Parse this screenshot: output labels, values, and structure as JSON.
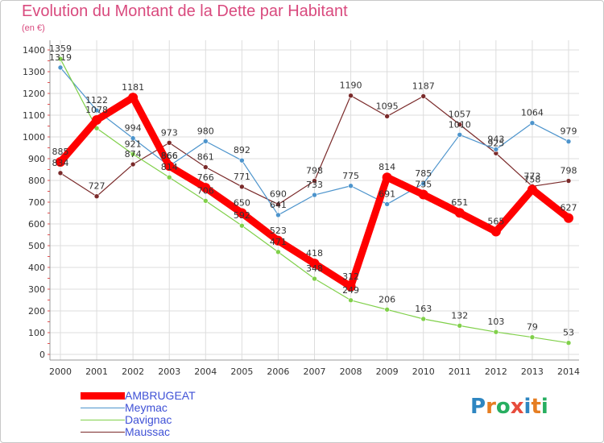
{
  "title": "Evolution du Montant de la Dette par Habitant",
  "unit": "(en €)",
  "logo": {
    "text": "Proxiti",
    "letters": [
      {
        "ch": "P",
        "color": "#2e86c1"
      },
      {
        "ch": "r",
        "color": "#e67e22"
      },
      {
        "ch": "o",
        "color": "#27ae60"
      },
      {
        "ch": "x",
        "color": "#e74c3c"
      },
      {
        "ch": "i",
        "color": "#2e86c1"
      },
      {
        "ch": "t",
        "color": "#e67e22"
      },
      {
        "ch": "i",
        "color": "#27ae60"
      }
    ]
  },
  "chart_data": {
    "type": "line",
    "x": [
      "2000",
      "2001",
      "2002",
      "2003",
      "2004",
      "2005",
      "2006",
      "2007",
      "2008",
      "2009",
      "2010",
      "2011",
      "2012",
      "2013",
      "2014"
    ],
    "ylim": [
      0,
      1400
    ],
    "yticks": [
      0,
      100,
      200,
      300,
      400,
      500,
      600,
      700,
      800,
      900,
      1000,
      1100,
      1200,
      1300,
      1400
    ],
    "grid": true,
    "legend_position": "bottom-left",
    "series": [
      {
        "name": "AMBRUGEAT",
        "color": "#ff0000",
        "values": [
          885,
          1078,
          1181,
          866,
          766,
          650,
          523,
          418,
          312,
          814,
          735,
          651,
          565,
          758,
          627
        ]
      },
      {
        "name": "Meymac",
        "color": "#4d94cc",
        "values": [
          1319,
          1122,
          994,
          866,
          980,
          892,
          641,
          733,
          775,
          691,
          785,
          1010,
          943,
          1064,
          979
        ]
      },
      {
        "name": "Davignac",
        "color": "#80d04a",
        "values": [
          1359,
          1040,
          921,
          814,
          706,
          592,
          471,
          348,
          249,
          206,
          163,
          132,
          103,
          79,
          53
        ]
      },
      {
        "name": "Maussac",
        "color": "#7a2a2a",
        "values": [
          834,
          727,
          874,
          973,
          861,
          771,
          690,
          798,
          1190,
          1095,
          1187,
          1057,
          925,
          773,
          798
        ]
      }
    ],
    "data_labels": [
      [
        "885",
        "1078",
        "1181",
        "866",
        "766",
        "650",
        "523",
        "418",
        "312",
        "814",
        "735",
        "651",
        "565",
        "758",
        "627"
      ],
      [
        "1319",
        "1122",
        "994",
        "866",
        "980",
        "892",
        "641",
        "733",
        "775",
        "691",
        "785",
        "1010",
        "943",
        "1064",
        "979"
      ],
      [
        "1359",
        "",
        "921",
        "814",
        "706",
        "592",
        "471",
        "348",
        "249",
        "206",
        "163",
        "132",
        "103",
        "79",
        "53"
      ],
      [
        "834",
        "727",
        "874",
        "973",
        "861",
        "771",
        "690",
        "798",
        "1190",
        "1095",
        "1187",
        "1057",
        "925",
        "773",
        "798"
      ]
    ]
  }
}
